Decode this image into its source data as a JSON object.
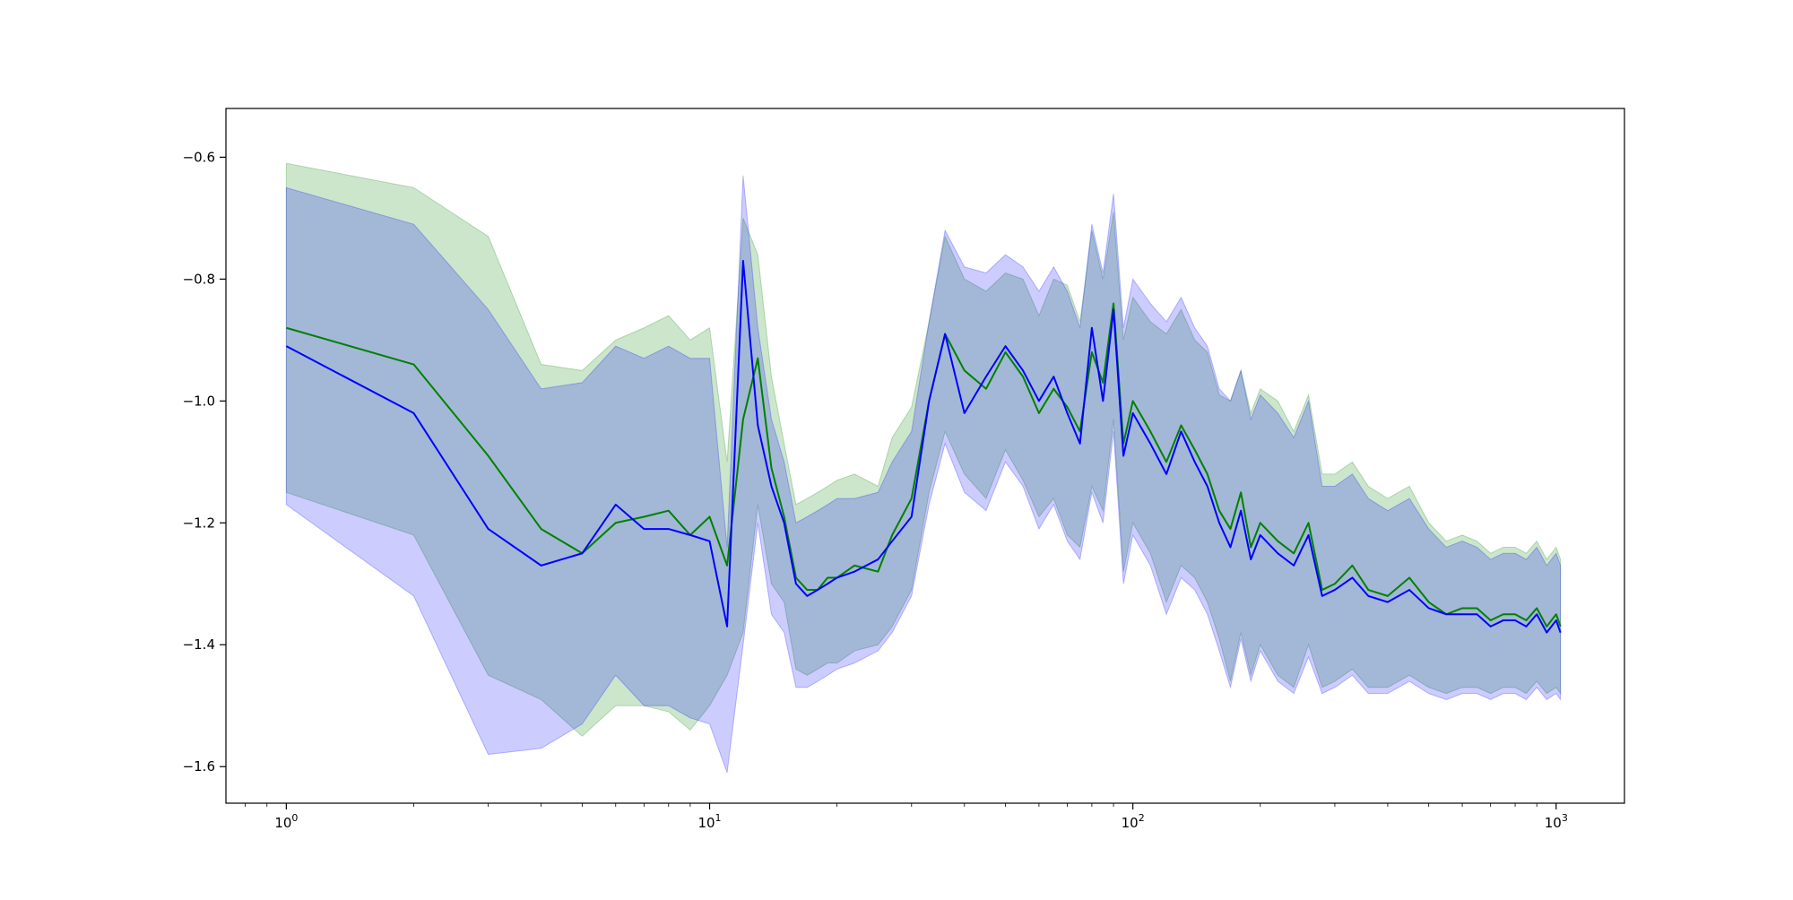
{
  "chart_data": {
    "type": "line",
    "title": "",
    "xlabel": "",
    "ylabel": "",
    "x_scale": "log",
    "xlim": [
      0.72,
      1450
    ],
    "ylim": [
      -1.66,
      -0.52
    ],
    "grid": false,
    "legend": "none",
    "x_ticks": [
      {
        "value": 1,
        "base": "10",
        "exp": "0"
      },
      {
        "value": 10,
        "base": "10",
        "exp": "1"
      },
      {
        "value": 100,
        "base": "10",
        "exp": "2"
      },
      {
        "value": 1000,
        "base": "10",
        "exp": "3"
      }
    ],
    "y_ticks": [
      {
        "value": -0.6,
        "label": "−0.6"
      },
      {
        "value": -0.8,
        "label": "−0.8"
      },
      {
        "value": -1.0,
        "label": "−1.0"
      },
      {
        "value": -1.2,
        "label": "−1.2"
      },
      {
        "value": -1.4,
        "label": "−1.4"
      },
      {
        "value": -1.6,
        "label": "−1.6"
      }
    ],
    "series": [
      {
        "color": "#008000",
        "band_color": "#008000",
        "band_opacity": 0.2,
        "x": [
          1,
          2,
          3,
          4,
          5,
          6,
          7,
          8,
          9,
          10,
          11,
          12,
          13,
          14,
          15,
          16,
          17,
          18,
          19,
          20,
          22,
          25,
          27,
          30,
          33,
          36,
          40,
          45,
          50,
          55,
          60,
          65,
          70,
          75,
          80,
          85,
          90,
          95,
          100,
          110,
          120,
          130,
          140,
          150,
          160,
          170,
          180,
          190,
          200,
          220,
          240,
          260,
          280,
          300,
          330,
          360,
          400,
          450,
          500,
          550,
          600,
          650,
          700,
          750,
          800,
          850,
          900,
          950,
          1000,
          1024
        ],
        "y": [
          -0.88,
          -0.94,
          -1.09,
          -1.21,
          -1.25,
          -1.2,
          -1.19,
          -1.18,
          -1.22,
          -1.19,
          -1.27,
          -1.03,
          -0.93,
          -1.11,
          -1.19,
          -1.29,
          -1.31,
          -1.31,
          -1.29,
          -1.29,
          -1.27,
          -1.28,
          -1.22,
          -1.16,
          -1.0,
          -0.89,
          -0.95,
          -0.98,
          -0.92,
          -0.96,
          -1.02,
          -0.98,
          -1.01,
          -1.05,
          -0.92,
          -0.97,
          -0.84,
          -1.07,
          -1.0,
          -1.05,
          -1.1,
          -1.04,
          -1.08,
          -1.12,
          -1.18,
          -1.21,
          -1.15,
          -1.24,
          -1.2,
          -1.23,
          -1.25,
          -1.2,
          -1.31,
          -1.3,
          -1.27,
          -1.31,
          -1.32,
          -1.29,
          -1.33,
          -1.35,
          -1.34,
          -1.34,
          -1.36,
          -1.35,
          -1.35,
          -1.36,
          -1.34,
          -1.37,
          -1.35,
          -1.37
        ],
        "upper": [
          -0.61,
          -0.65,
          -0.73,
          -0.94,
          -0.95,
          -0.9,
          -0.88,
          -0.86,
          -0.9,
          -0.88,
          -1.1,
          -0.7,
          -0.76,
          -0.96,
          -1.07,
          -1.17,
          -1.16,
          -1.15,
          -1.14,
          -1.13,
          -1.12,
          -1.14,
          -1.06,
          -1.01,
          -0.87,
          -0.73,
          -0.8,
          -0.82,
          -0.79,
          -0.8,
          -0.86,
          -0.8,
          -0.81,
          -0.87,
          -0.72,
          -0.8,
          -0.69,
          -0.9,
          -0.83,
          -0.87,
          -0.89,
          -0.85,
          -0.9,
          -0.92,
          -0.99,
          -1.0,
          -0.95,
          -1.02,
          -0.98,
          -1.0,
          -1.05,
          -0.99,
          -1.12,
          -1.12,
          -1.1,
          -1.14,
          -1.16,
          -1.14,
          -1.2,
          -1.23,
          -1.22,
          -1.23,
          -1.25,
          -1.24,
          -1.24,
          -1.25,
          -1.23,
          -1.26,
          -1.24,
          -1.26
        ],
        "lower": [
          -1.15,
          -1.22,
          -1.45,
          -1.49,
          -1.55,
          -1.5,
          -1.5,
          -1.51,
          -1.54,
          -1.5,
          -1.45,
          -1.38,
          -1.17,
          -1.3,
          -1.33,
          -1.44,
          -1.45,
          -1.44,
          -1.43,
          -1.43,
          -1.41,
          -1.4,
          -1.37,
          -1.31,
          -1.15,
          -1.05,
          -1.12,
          -1.16,
          -1.08,
          -1.13,
          -1.19,
          -1.16,
          -1.22,
          -1.24,
          -1.14,
          -1.18,
          -1.03,
          -1.28,
          -1.2,
          -1.25,
          -1.33,
          -1.27,
          -1.29,
          -1.33,
          -1.39,
          -1.46,
          -1.38,
          -1.45,
          -1.4,
          -1.45,
          -1.47,
          -1.4,
          -1.47,
          -1.46,
          -1.44,
          -1.47,
          -1.47,
          -1.45,
          -1.47,
          -1.48,
          -1.47,
          -1.47,
          -1.48,
          -1.47,
          -1.47,
          -1.48,
          -1.46,
          -1.48,
          -1.47,
          -1.48
        ]
      },
      {
        "color": "#0000ff",
        "band_color": "#0000ff",
        "band_opacity": 0.2,
        "x": [
          1,
          2,
          3,
          4,
          5,
          6,
          7,
          8,
          9,
          10,
          11,
          12,
          13,
          14,
          15,
          16,
          17,
          18,
          19,
          20,
          22,
          25,
          27,
          30,
          33,
          36,
          40,
          45,
          50,
          55,
          60,
          65,
          70,
          75,
          80,
          85,
          90,
          95,
          100,
          110,
          120,
          130,
          140,
          150,
          160,
          170,
          180,
          190,
          200,
          220,
          240,
          260,
          280,
          300,
          330,
          360,
          400,
          450,
          500,
          550,
          600,
          650,
          700,
          750,
          800,
          850,
          900,
          950,
          1000,
          1024
        ],
        "y": [
          -0.91,
          -1.02,
          -1.21,
          -1.27,
          -1.25,
          -1.17,
          -1.21,
          -1.21,
          -1.22,
          -1.23,
          -1.37,
          -0.77,
          -1.04,
          -1.14,
          -1.2,
          -1.3,
          -1.32,
          -1.31,
          -1.3,
          -1.29,
          -1.28,
          -1.26,
          -1.23,
          -1.19,
          -1.0,
          -0.89,
          -1.02,
          -0.96,
          -0.91,
          -0.95,
          -1.0,
          -0.96,
          -1.02,
          -1.07,
          -0.88,
          -1.0,
          -0.85,
          -1.09,
          -1.02,
          -1.07,
          -1.12,
          -1.05,
          -1.1,
          -1.14,
          -1.2,
          -1.24,
          -1.18,
          -1.26,
          -1.22,
          -1.25,
          -1.27,
          -1.22,
          -1.32,
          -1.31,
          -1.29,
          -1.32,
          -1.33,
          -1.31,
          -1.34,
          -1.35,
          -1.35,
          -1.35,
          -1.37,
          -1.36,
          -1.36,
          -1.37,
          -1.35,
          -1.38,
          -1.36,
          -1.38
        ],
        "upper": [
          -0.65,
          -0.71,
          -0.85,
          -0.98,
          -0.97,
          -0.91,
          -0.93,
          -0.91,
          -0.93,
          -0.93,
          -1.24,
          -0.63,
          -0.88,
          -1.03,
          -1.1,
          -1.2,
          -1.19,
          -1.18,
          -1.17,
          -1.16,
          -1.16,
          -1.15,
          -1.1,
          -1.05,
          -0.87,
          -0.72,
          -0.78,
          -0.79,
          -0.76,
          -0.78,
          -0.82,
          -0.78,
          -0.82,
          -0.88,
          -0.71,
          -0.79,
          -0.66,
          -0.88,
          -0.8,
          -0.84,
          -0.87,
          -0.83,
          -0.88,
          -0.91,
          -0.98,
          -1.0,
          -0.95,
          -1.03,
          -0.99,
          -1.02,
          -1.06,
          -1.0,
          -1.14,
          -1.14,
          -1.12,
          -1.16,
          -1.18,
          -1.16,
          -1.21,
          -1.24,
          -1.23,
          -1.24,
          -1.26,
          -1.25,
          -1.25,
          -1.26,
          -1.24,
          -1.27,
          -1.25,
          -1.27
        ],
        "lower": [
          -1.17,
          -1.32,
          -1.58,
          -1.57,
          -1.53,
          -1.45,
          -1.5,
          -1.5,
          -1.52,
          -1.53,
          -1.61,
          -1.4,
          -1.2,
          -1.35,
          -1.38,
          -1.47,
          -1.47,
          -1.46,
          -1.45,
          -1.44,
          -1.43,
          -1.41,
          -1.38,
          -1.32,
          -1.17,
          -1.07,
          -1.15,
          -1.18,
          -1.1,
          -1.14,
          -1.21,
          -1.17,
          -1.23,
          -1.26,
          -1.15,
          -1.2,
          -1.05,
          -1.3,
          -1.22,
          -1.27,
          -1.35,
          -1.29,
          -1.31,
          -1.35,
          -1.41,
          -1.47,
          -1.39,
          -1.46,
          -1.41,
          -1.46,
          -1.48,
          -1.42,
          -1.48,
          -1.47,
          -1.45,
          -1.48,
          -1.48,
          -1.46,
          -1.48,
          -1.49,
          -1.48,
          -1.48,
          -1.49,
          -1.48,
          -1.48,
          -1.49,
          -1.47,
          -1.49,
          -1.48,
          -1.49
        ]
      }
    ]
  }
}
